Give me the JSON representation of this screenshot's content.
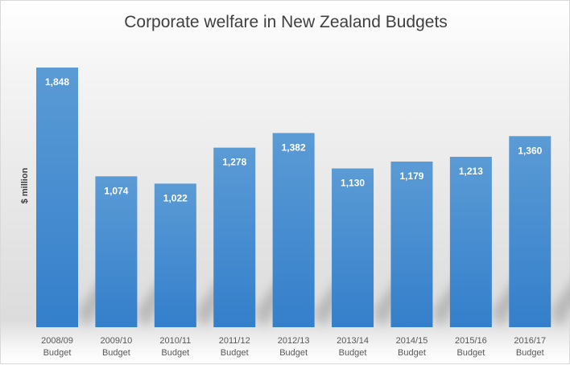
{
  "chart_data": {
    "type": "bar",
    "title": "Corporate welfare in New Zealand Budgets",
    "xlabel": "",
    "ylabel": "$ million",
    "categories": [
      [
        "2008/09",
        "Budget"
      ],
      [
        "2009/10",
        "Budget"
      ],
      [
        "2010/11",
        "Budget"
      ],
      [
        "2011/12",
        "Budget"
      ],
      [
        "2012/13",
        "Budget"
      ],
      [
        "2013/14",
        "Budget"
      ],
      [
        "2014/15",
        "Budget"
      ],
      [
        "2015/16",
        "Budget"
      ],
      [
        "2016/17",
        "Budget"
      ]
    ],
    "values": [
      1848,
      1074,
      1022,
      1278,
      1382,
      1130,
      1179,
      1213,
      1360
    ],
    "data_labels": [
      "1,848",
      "1,074",
      "1,022",
      "1,278",
      "1,382",
      "1,130",
      "1,179",
      "1,213",
      "1,360"
    ],
    "ylim": [
      0,
      2100
    ],
    "grid": false,
    "legend": "none",
    "colors": {
      "bar_top": "#5b9bd5",
      "bar_bottom": "#347fcb",
      "label": "#ffffff",
      "title": "#404040",
      "tick": "#595959"
    }
  }
}
